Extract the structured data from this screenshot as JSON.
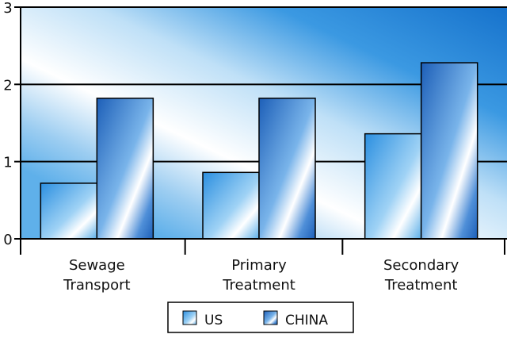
{
  "chart_data": {
    "type": "bar",
    "categories": [
      [
        "Sewage",
        "Transport"
      ],
      [
        "Primary",
        "Treatment"
      ],
      [
        "Secondary",
        "Treatment"
      ]
    ],
    "series": [
      {
        "name": "US",
        "values": [
          0.72,
          0.86,
          1.36
        ]
      },
      {
        "name": "CHINA",
        "values": [
          1.82,
          1.82,
          2.28
        ]
      }
    ],
    "ylim": [
      0,
      3
    ],
    "yticks": [
      "0",
      "1",
      "2",
      "3"
    ],
    "grid": true,
    "legend": "bottom-center",
    "colors": {
      "plot_dark": "#1e7bd4",
      "plot_light": "#ffffff",
      "us_bar": "#3aa4e8",
      "china_bar": "#2a6fc8",
      "grid": "#000000"
    }
  }
}
